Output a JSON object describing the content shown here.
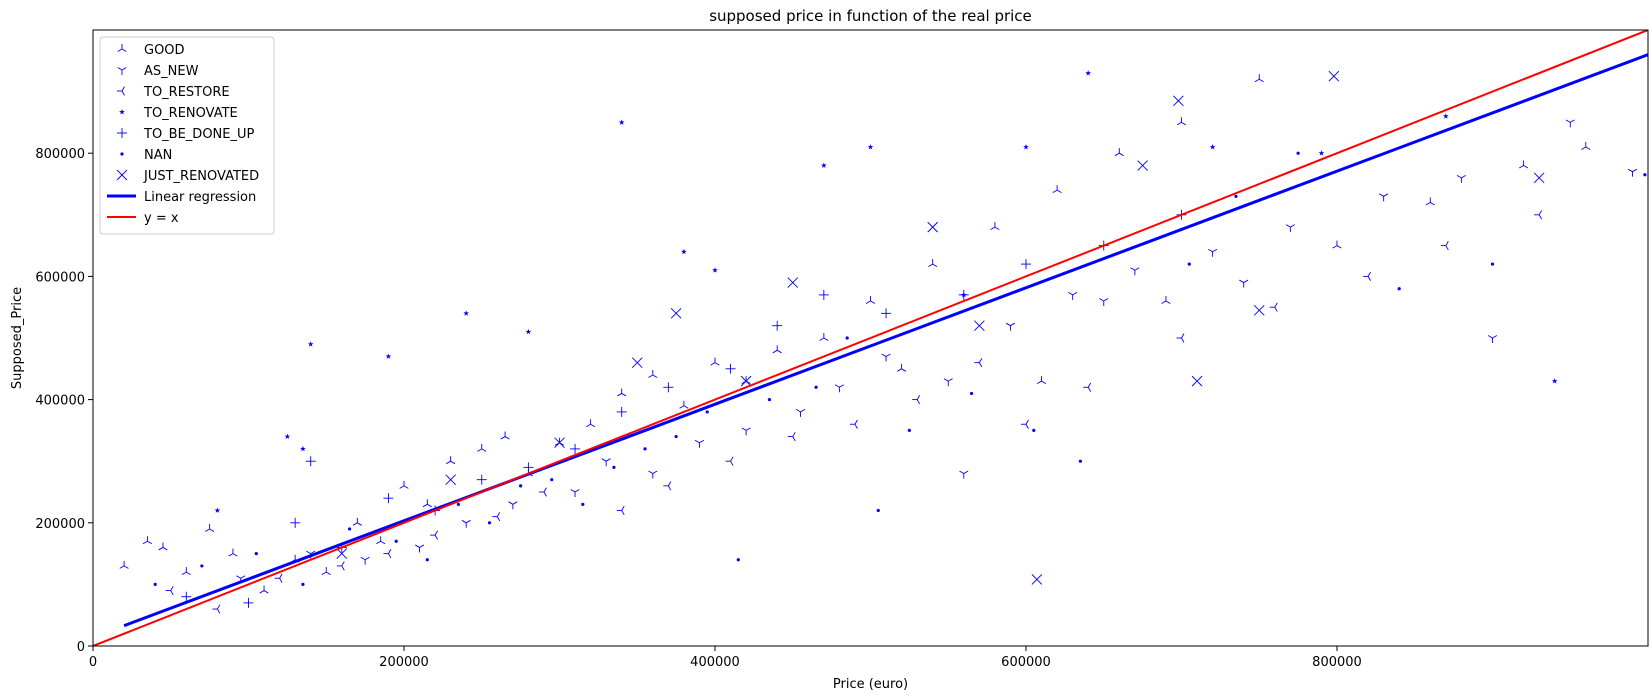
{
  "chart_data": {
    "type": "scatter",
    "title": "supposed price in function of the real price",
    "xlabel": "Price (euro)",
    "ylabel": "Supposed_Price",
    "xlim": [
      0,
      1000000
    ],
    "ylim": [
      0,
      1000000
    ],
    "xticks": [
      0,
      200000,
      400000,
      600000,
      800000
    ],
    "yticks": [
      0,
      200000,
      400000,
      600000,
      800000
    ],
    "grid": false,
    "legend_position": "top-left",
    "marker_color": "#0000ff",
    "series": [
      {
        "name": "GOOD",
        "marker": "tri_up",
        "points": [
          [
            20000,
            130000
          ],
          [
            35000,
            170000
          ],
          [
            45000,
            160000
          ],
          [
            60000,
            120000
          ],
          [
            75000,
            190000
          ],
          [
            90000,
            150000
          ],
          [
            110000,
            90000
          ],
          [
            130000,
            140000
          ],
          [
            150000,
            120000
          ],
          [
            170000,
            200000
          ],
          [
            185000,
            170000
          ],
          [
            200000,
            260000
          ],
          [
            215000,
            230000
          ],
          [
            230000,
            300000
          ],
          [
            250000,
            320000
          ],
          [
            265000,
            340000
          ],
          [
            280000,
            280000
          ],
          [
            300000,
            330000
          ],
          [
            320000,
            360000
          ],
          [
            340000,
            410000
          ],
          [
            360000,
            440000
          ],
          [
            380000,
            390000
          ],
          [
            400000,
            460000
          ],
          [
            420000,
            430000
          ],
          [
            440000,
            480000
          ],
          [
            470000,
            500000
          ],
          [
            500000,
            560000
          ],
          [
            540000,
            620000
          ],
          [
            580000,
            680000
          ],
          [
            620000,
            740000
          ],
          [
            660000,
            800000
          ],
          [
            700000,
            850000
          ],
          [
            750000,
            920000
          ],
          [
            800000,
            650000
          ],
          [
            860000,
            720000
          ],
          [
            920000,
            780000
          ],
          [
            960000,
            810000
          ],
          [
            520000,
            450000
          ],
          [
            610000,
            430000
          ],
          [
            690000,
            560000
          ]
        ]
      },
      {
        "name": "AS_NEW",
        "marker": "tri_down",
        "points": [
          [
            95000,
            110000
          ],
          [
            140000,
            150000
          ],
          [
            175000,
            140000
          ],
          [
            210000,
            160000
          ],
          [
            240000,
            200000
          ],
          [
            270000,
            230000
          ],
          [
            310000,
            250000
          ],
          [
            330000,
            300000
          ],
          [
            360000,
            280000
          ],
          [
            390000,
            330000
          ],
          [
            420000,
            350000
          ],
          [
            455000,
            380000
          ],
          [
            480000,
            420000
          ],
          [
            510000,
            470000
          ],
          [
            550000,
            430000
          ],
          [
            590000,
            520000
          ],
          [
            630000,
            570000
          ],
          [
            670000,
            610000
          ],
          [
            720000,
            640000
          ],
          [
            770000,
            680000
          ],
          [
            830000,
            730000
          ],
          [
            880000,
            760000
          ],
          [
            950000,
            850000
          ],
          [
            990000,
            770000
          ],
          [
            560000,
            280000
          ],
          [
            650000,
            560000
          ],
          [
            740000,
            590000
          ],
          [
            900000,
            500000
          ]
        ]
      },
      {
        "name": "TO_RESTORE",
        "marker": "tri_left",
        "points": [
          [
            50000,
            90000
          ],
          [
            80000,
            60000
          ],
          [
            120000,
            110000
          ],
          [
            160000,
            130000
          ],
          [
            190000,
            150000
          ],
          [
            220000,
            180000
          ],
          [
            260000,
            210000
          ],
          [
            290000,
            250000
          ],
          [
            340000,
            220000
          ],
          [
            370000,
            260000
          ],
          [
            410000,
            300000
          ],
          [
            450000,
            340000
          ],
          [
            490000,
            360000
          ],
          [
            530000,
            400000
          ],
          [
            570000,
            460000
          ],
          [
            600000,
            360000
          ],
          [
            640000,
            420000
          ],
          [
            700000,
            500000
          ],
          [
            760000,
            550000
          ],
          [
            820000,
            600000
          ],
          [
            870000,
            650000
          ],
          [
            930000,
            700000
          ]
        ]
      },
      {
        "name": "TO_RENOVATE",
        "marker": "star",
        "points": [
          [
            80000,
            220000
          ],
          [
            140000,
            490000
          ],
          [
            190000,
            470000
          ],
          [
            240000,
            540000
          ],
          [
            280000,
            510000
          ],
          [
            340000,
            850000
          ],
          [
            380000,
            640000
          ],
          [
            400000,
            610000
          ],
          [
            470000,
            780000
          ],
          [
            500000,
            810000
          ],
          [
            560000,
            570000
          ],
          [
            600000,
            810000
          ],
          [
            640000,
            930000
          ],
          [
            720000,
            810000
          ],
          [
            790000,
            800000
          ],
          [
            870000,
            860000
          ],
          [
            940000,
            430000
          ],
          [
            125000,
            340000
          ],
          [
            135000,
            320000
          ]
        ]
      },
      {
        "name": "TO_BE_DONE_UP",
        "marker": "plus",
        "points": [
          [
            60000,
            80000
          ],
          [
            100000,
            70000
          ],
          [
            130000,
            200000
          ],
          [
            160000,
            160000
          ],
          [
            190000,
            240000
          ],
          [
            220000,
            220000
          ],
          [
            250000,
            270000
          ],
          [
            280000,
            290000
          ],
          [
            310000,
            320000
          ],
          [
            340000,
            380000
          ],
          [
            370000,
            420000
          ],
          [
            410000,
            450000
          ],
          [
            440000,
            520000
          ],
          [
            470000,
            570000
          ],
          [
            510000,
            540000
          ],
          [
            560000,
            570000
          ],
          [
            600000,
            620000
          ],
          [
            650000,
            650000
          ],
          [
            700000,
            700000
          ],
          [
            140000,
            300000
          ]
        ]
      },
      {
        "name": "NAN",
        "marker": "point",
        "points": [
          [
            40000,
            100000
          ],
          [
            70000,
            130000
          ],
          [
            105000,
            150000
          ],
          [
            135000,
            100000
          ],
          [
            165000,
            190000
          ],
          [
            195000,
            170000
          ],
          [
            215000,
            140000
          ],
          [
            235000,
            230000
          ],
          [
            255000,
            200000
          ],
          [
            275000,
            260000
          ],
          [
            295000,
            270000
          ],
          [
            315000,
            230000
          ],
          [
            335000,
            290000
          ],
          [
            355000,
            320000
          ],
          [
            375000,
            340000
          ],
          [
            395000,
            380000
          ],
          [
            415000,
            140000
          ],
          [
            435000,
            400000
          ],
          [
            465000,
            420000
          ],
          [
            485000,
            500000
          ],
          [
            505000,
            220000
          ],
          [
            525000,
            350000
          ],
          [
            565000,
            410000
          ],
          [
            605000,
            350000
          ],
          [
            635000,
            300000
          ],
          [
            705000,
            620000
          ],
          [
            735000,
            730000
          ],
          [
            775000,
            800000
          ],
          [
            840000,
            580000
          ],
          [
            900000,
            620000
          ],
          [
            998000,
            765000
          ]
        ]
      },
      {
        "name": "JUST_RENOVATED",
        "marker": "x",
        "points": [
          [
            160000,
            150000
          ],
          [
            230000,
            270000
          ],
          [
            300000,
            330000
          ],
          [
            350000,
            460000
          ],
          [
            375000,
            540000
          ],
          [
            420000,
            430000
          ],
          [
            450000,
            590000
          ],
          [
            540000,
            680000
          ],
          [
            570000,
            520000
          ],
          [
            607000,
            108000
          ],
          [
            675000,
            780000
          ],
          [
            698000,
            885000
          ],
          [
            710000,
            430000
          ],
          [
            750000,
            545000
          ],
          [
            798000,
            925000
          ],
          [
            930000,
            760000
          ]
        ]
      }
    ],
    "lines": [
      {
        "name": "Linear regression",
        "color": "#0000ff",
        "x": [
          20000,
          1000000
        ],
        "y": [
          33000,
          960000
        ]
      },
      {
        "name": "y = x",
        "color": "#ff0000",
        "x": [
          0,
          1000000
        ],
        "y": [
          0,
          1000000
        ]
      }
    ]
  }
}
